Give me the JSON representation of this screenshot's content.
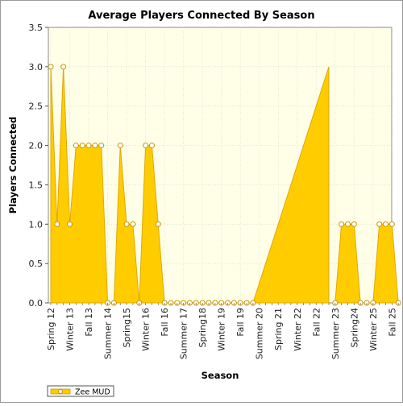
{
  "chart_data": {
    "type": "area",
    "title": "Average Players Connected By Season",
    "xlabel": "Season",
    "ylabel": "Players Connected",
    "ylim": [
      0,
      3.5
    ],
    "yticks": [
      "0.0",
      "0.5",
      "1.0",
      "1.5",
      "2.0",
      "2.5",
      "3.0",
      "3.5"
    ],
    "xtick_labels": [
      "Spring 12",
      "Winter 13",
      "Fall 13",
      "Summer 14",
      "Spring15",
      "Winter 16",
      "Fall 16",
      "Summer 17",
      "Spring18",
      "Winter 19",
      "Fall 19",
      "Summer 20",
      "Spring 21",
      "Winter 22",
      "Fall 22",
      "Summer 23",
      "Spring24",
      "Winter 25",
      "Fall 25"
    ],
    "grid": true,
    "legend_position": "bottom-left",
    "x": [
      0,
      1,
      2,
      3,
      4,
      5,
      6,
      7,
      8,
      9,
      10,
      11,
      12,
      13,
      14,
      15,
      16,
      17,
      18,
      19,
      20,
      21,
      22,
      23,
      24,
      25,
      26,
      27,
      28,
      29,
      30,
      31,
      32,
      33,
      34,
      35,
      36,
      37,
      38,
      39,
      40,
      41,
      42,
      43,
      44,
      45,
      46,
      47,
      48,
      49,
      50,
      51,
      52,
      53,
      54,
      55
    ],
    "series": [
      {
        "name": "Zee MUD",
        "color": "#ffcc00",
        "values": [
          3,
          1,
          3,
          1,
          2,
          2,
          2,
          2,
          2,
          0,
          0,
          2,
          1,
          1,
          0,
          2,
          2,
          1,
          0,
          0,
          0,
          0,
          0,
          0,
          0,
          0,
          0,
          0,
          0,
          0,
          0,
          0,
          0,
          null,
          null,
          null,
          null,
          null,
          null,
          null,
          null,
          null,
          null,
          null,
          null,
          0,
          1,
          1,
          1,
          0,
          0,
          0,
          1,
          1,
          1,
          0
        ],
        "gap_fill": [
          [
            32,
            0
          ],
          [
            44,
            3
          ]
        ]
      }
    ]
  }
}
